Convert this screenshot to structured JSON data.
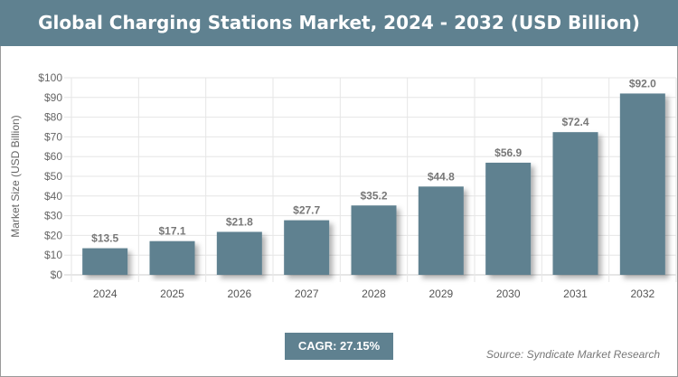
{
  "chart_data": {
    "type": "bar",
    "title": "Global Charging Stations Market, 2024 - 2032 (USD Billion)",
    "ylabel": "Market Size (USD Billion)",
    "xlabel": "",
    "categories": [
      "2024",
      "2025",
      "2026",
      "2027",
      "2028",
      "2029",
      "2030",
      "2031",
      "2032"
    ],
    "values": [
      13.5,
      17.1,
      21.8,
      27.7,
      35.2,
      44.8,
      56.9,
      72.4,
      92.0
    ],
    "data_labels": [
      "$13.5",
      "$17.1",
      "$21.8",
      "$27.7",
      "$35.2",
      "$44.8",
      "$56.9",
      "$72.4",
      "$92.0"
    ],
    "ylim": [
      0,
      100
    ],
    "yticks": [
      "$0",
      "$10",
      "$20",
      "$30",
      "$40",
      "$50",
      "$60",
      "$70",
      "$80",
      "$90",
      "$100"
    ],
    "grid": true,
    "bar_color": "#5f8190"
  },
  "cagr": "CAGR: 27.15%",
  "source": "Source: Syndicate Market Research"
}
